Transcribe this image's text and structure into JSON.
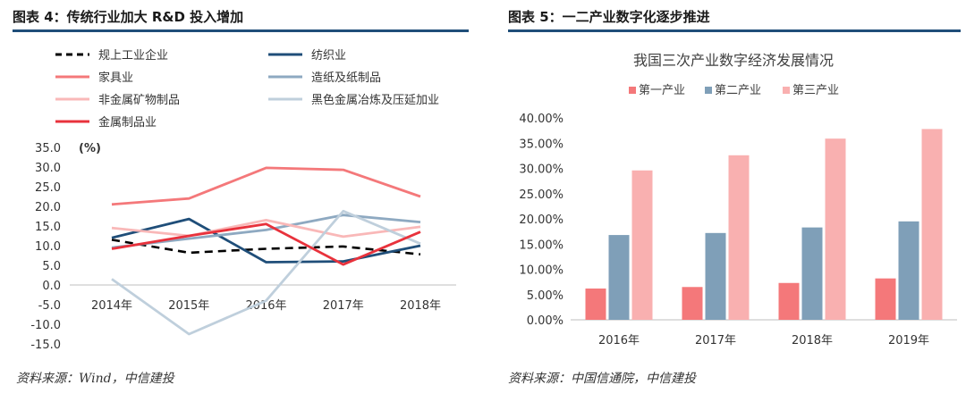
{
  "figures": {
    "left": {
      "title": "图表 4：传统行业加大 R&D 投入增加",
      "source": "资料来源：Wind，中信建投"
    },
    "right": {
      "title": "图表 5：一二产业数字化逐步推进",
      "source": "资料来源：中国信通院，中信建投"
    }
  },
  "chart_data": [
    {
      "type": "line",
      "title": "",
      "unit_label": "(%)",
      "xlabel": "",
      "ylabel": "",
      "categories": [
        "2014年",
        "2015年",
        "2016年",
        "2017年",
        "2018年"
      ],
      "ylim": [
        -15,
        35
      ],
      "yticks": [
        "35.0",
        "30.0",
        "25.0",
        "20.0",
        "15.0",
        "10.0",
        "5.0",
        "0.0",
        "-5.0",
        "-10.0",
        "-15.0"
      ],
      "grid": false,
      "legend_position": "top",
      "series": [
        {
          "name": "规上工业企业",
          "color": "#000000",
          "dashed": true,
          "values": [
            11.5,
            8.2,
            9.2,
            9.8,
            7.8
          ]
        },
        {
          "name": "纺织业",
          "color": "#1f4e79",
          "dashed": false,
          "values": [
            12.0,
            16.8,
            5.8,
            6.0,
            10.0
          ]
        },
        {
          "name": "家具业",
          "color": "#f4787a",
          "dashed": false,
          "values": [
            20.5,
            22.0,
            29.8,
            29.3,
            22.5
          ]
        },
        {
          "name": "造纸及纸制品",
          "color": "#8ea9c1",
          "dashed": false,
          "values": [
            9.5,
            11.8,
            14.0,
            17.8,
            16.0
          ]
        },
        {
          "name": "非金属矿物制品",
          "color": "#f9b8b8",
          "dashed": false,
          "values": [
            14.5,
            12.5,
            16.5,
            12.3,
            14.8
          ]
        },
        {
          "name": "黑色金属冶炼及压延加业",
          "color": "#bfcfdc",
          "dashed": false,
          "values": [
            1.5,
            -12.5,
            -4.0,
            18.8,
            10.5
          ]
        },
        {
          "name": "金属制品业",
          "color": "#e8323c",
          "dashed": false,
          "values": [
            9.2,
            12.5,
            15.5,
            5.2,
            13.5
          ]
        }
      ]
    },
    {
      "type": "bar",
      "title": "我国三次产业数字经济发展情况",
      "xlabel": "",
      "ylabel": "",
      "categories": [
        "2016年",
        "2017年",
        "2018年",
        "2019年"
      ],
      "ylim": [
        0,
        40
      ],
      "yticks": [
        "40.00%",
        "35.00%",
        "30.00%",
        "25.00%",
        "20.00%",
        "15.00%",
        "10.00%",
        "5.00%",
        "0.00%"
      ],
      "grid": false,
      "legend_position": "top",
      "series": [
        {
          "name": "第一产业",
          "color": "#f4787a",
          "values": [
            6.2,
            6.5,
            7.3,
            8.2
          ]
        },
        {
          "name": "第二产业",
          "color": "#7f9fb8",
          "values": [
            16.8,
            17.2,
            18.3,
            19.5
          ]
        },
        {
          "name": "第三产业",
          "color": "#f9b0b0",
          "values": [
            29.6,
            32.6,
            35.9,
            37.8
          ]
        }
      ]
    }
  ]
}
